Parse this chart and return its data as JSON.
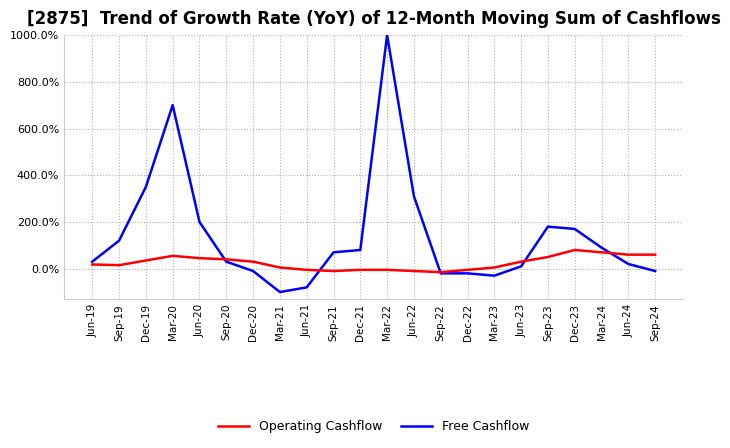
{
  "title": "[2875]  Trend of Growth Rate (YoY) of 12-Month Moving Sum of Cashflows",
  "title_fontsize": 12,
  "ylim": [
    -130,
    1000
  ],
  "yticks": [
    0,
    200,
    400,
    600,
    800,
    1000
  ],
  "background_color": "#ffffff",
  "grid_color": "#aaaaaa",
  "x_labels": [
    "Jun-19",
    "Sep-19",
    "Dec-19",
    "Mar-20",
    "Jun-20",
    "Sep-20",
    "Dec-20",
    "Mar-21",
    "Jun-21",
    "Sep-21",
    "Dec-21",
    "Mar-22",
    "Jun-22",
    "Sep-22",
    "Dec-22",
    "Mar-23",
    "Jun-23",
    "Sep-23",
    "Dec-23",
    "Mar-24",
    "Jun-24",
    "Sep-24"
  ],
  "operating_cashflow": [
    18,
    15,
    35,
    55,
    45,
    40,
    30,
    5,
    -5,
    -10,
    -5,
    -5,
    -10,
    -15,
    -5,
    5,
    30,
    50,
    80,
    70,
    60,
    60
  ],
  "free_cashflow": [
    30,
    120,
    350,
    700,
    200,
    30,
    -10,
    -100,
    -80,
    70,
    80,
    1000,
    310,
    -20,
    -20,
    -30,
    10,
    180,
    170,
    90,
    20,
    -10
  ],
  "op_color": "#ff0000",
  "fc_color": "#0000ff",
  "legend_labels": [
    "Operating Cashflow",
    "Free Cashflow"
  ],
  "line_width": 1.8
}
